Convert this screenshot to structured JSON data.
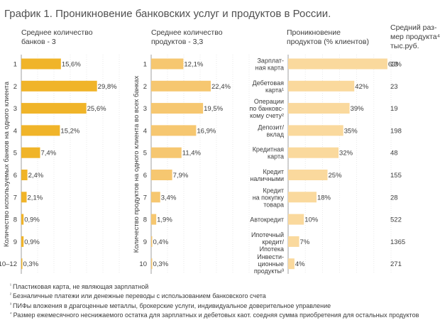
{
  "title": "График 1. Проникновение банковских услуг и продуктов в России.",
  "colors": {
    "bar_dark": "#f0b429",
    "bar_mid": "#f6c770",
    "bar_light": "#fad99d",
    "grid": "#dcdcdc",
    "axis": "#8a8a8a"
  },
  "chart_data": [
    {
      "type": "bar",
      "orientation": "horizontal",
      "title": "Среднее количество банков - 3",
      "ylabel": "Количество используемых банков на одного клиента",
      "categories": [
        "1",
        "2",
        "3",
        "4",
        "5",
        "6",
        "7",
        "8",
        "9",
        "10–12"
      ],
      "values": [
        15.6,
        29.8,
        25.6,
        15.2,
        7.4,
        2.4,
        2.1,
        0.9,
        0.9,
        0.3
      ],
      "labels": [
        "15,6%",
        "29,8%",
        "25,6%",
        "15,2%",
        "7,4%",
        "2,4%",
        "2,1%",
        "0,9%",
        "0,9%",
        "0,3%"
      ],
      "color": "dark",
      "xlim": [
        0,
        33
      ]
    },
    {
      "type": "bar",
      "orientation": "horizontal",
      "title": "Среднее количество продуктов - 3,3",
      "ylabel": "Количество продуктов на одного клиента во всех банках",
      "categories": [
        "1",
        "2",
        "3",
        "4",
        "5",
        "6",
        "7",
        "8",
        "9",
        "10"
      ],
      "values": [
        12.1,
        22.4,
        19.5,
        16.9,
        11.4,
        7.9,
        3.4,
        1.9,
        0.4,
        0.3
      ],
      "labels": [
        "12,1%",
        "22,4%",
        "19,5%",
        "16,9%",
        "11,4%",
        "7,9%",
        "3,4%",
        "1,9%",
        "0,4%",
        "0,3%"
      ],
      "color": "mid",
      "xlim": [
        0,
        33
      ]
    },
    {
      "type": "bar",
      "orientation": "horizontal",
      "title": "Проникновение продуктов (% клиентов)",
      "extra_column_title": "Средний размер продукта⁴, тыс.руб.",
      "categories": [
        "Зарплатная карта",
        "Дебетовая карта¹",
        "Операции по банковскому счету²",
        "Депозит/вклад",
        "Кредитная карта",
        "Кредит наличными",
        "Кредит на покупку товара",
        "Автокредит",
        "Ипотечный кредит/Ипотека",
        "Инвестиционные продукты³"
      ],
      "values": [
        63,
        42,
        39,
        35,
        32,
        25,
        18,
        10,
        7,
        4
      ],
      "labels": [
        "63%",
        "42%",
        "39%",
        "35%",
        "32%",
        "25%",
        "18%",
        "10%",
        "7%",
        "4%"
      ],
      "average_size": [
        "13",
        "23",
        "19",
        "198",
        "48",
        "155",
        "28",
        "522",
        "1365",
        "271"
      ],
      "color": "light",
      "xlim": [
        0,
        65
      ]
    }
  ],
  "svg_text": {
    "c1_title": [
      "Среднее количество",
      "банков - 3"
    ],
    "c2_title": [
      "Среднее количество",
      "продуктов - 3,3"
    ],
    "c3_title": [
      "Проникновение",
      "продуктов (% клиентов)"
    ],
    "c4_title": [
      "Средний раз-",
      "мер продукта⁴,",
      "тыс.руб."
    ],
    "c3_cat_lines": [
      [
        "Зарплат-",
        "ная карта"
      ],
      [
        "Дебетовая",
        "карта¹"
      ],
      [
        "Операции",
        "по банковс-",
        "кому счету²"
      ],
      [
        "Депозит/",
        "вклад"
      ],
      [
        "Кредитная",
        "карта"
      ],
      [
        "Кредит",
        "наличными"
      ],
      [
        "Кредит",
        "на покупку",
        "товара"
      ],
      [
        "Автокредит"
      ],
      [
        "Ипотечный",
        "кредит/",
        "Ипотека"
      ],
      [
        "Инвести-",
        "ционные",
        "продукты³"
      ]
    ]
  },
  "footnotes": [
    {
      "num": "¹",
      "text": "Пластиковая карта, не являющая зарплатной"
    },
    {
      "num": "²",
      "text": "Безналичные платежи или денежные переводы с использованием банковского счета"
    },
    {
      "num": "³",
      "text": "ПИФы вложения в драгоценные металлы, брокерские услуги, индивидуальное доверительное управление"
    },
    {
      "num": "⁴",
      "text": "Размер ежемесячного неснижаемого остатка для зарплатных и дебетовых каот. соедняя сумма приобретения для остальных продуктов"
    }
  ]
}
